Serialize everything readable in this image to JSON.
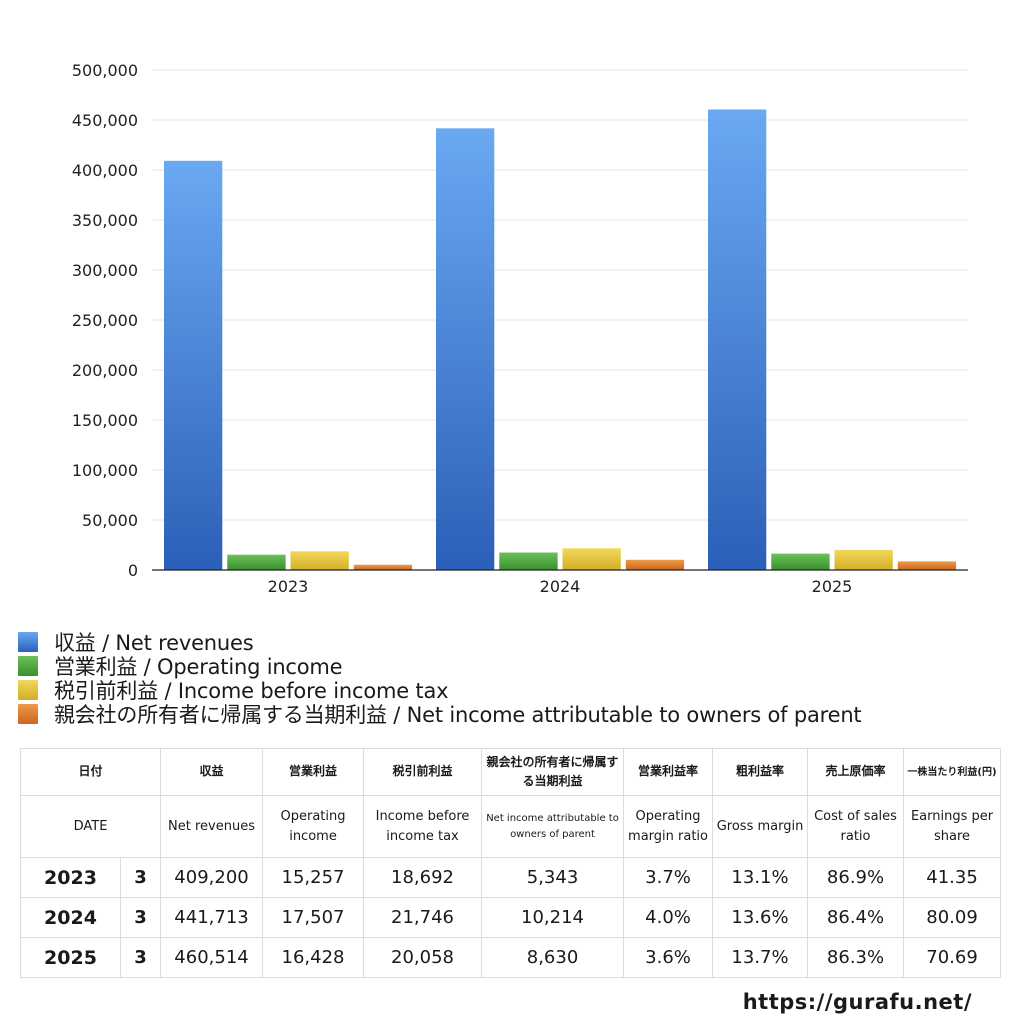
{
  "chart_data": {
    "type": "bar",
    "categories": [
      "2023",
      "2024",
      "2025"
    ],
    "ylim": [
      0,
      500000
    ],
    "yticks": [
      "0",
      "50,000",
      "100,000",
      "150,000",
      "200,000",
      "250,000",
      "300,000",
      "350,000",
      "400,000",
      "450,000",
      "500,000"
    ],
    "grid": true,
    "legend_position": "bottom",
    "series": [
      {
        "name": "収益 / Net revenues",
        "values": [
          409200,
          441713,
          460514
        ],
        "color": "#3f80de",
        "color_light": "#6aa9f2",
        "color_dark": "#2c5fb8"
      },
      {
        "name": "営業利益 / Operating income",
        "values": [
          15257,
          17507,
          16428
        ],
        "color": "#4ea83d",
        "color_light": "#6cc05a",
        "color_dark": "#3a8f2e"
      },
      {
        "name": "税引前利益 / Income before income tax",
        "values": [
          18692,
          21746,
          20058
        ],
        "color": "#e6c63a",
        "color_light": "#f2d85a",
        "color_dark": "#d2ae27"
      },
      {
        "name": "親会社の所有者に帰属する当期利益 / Net income attributable to owners of parent",
        "values": [
          5343,
          10214,
          8630
        ],
        "color": "#e07a2c",
        "color_light": "#ee9a4a",
        "color_dark": "#cc6620"
      }
    ]
  },
  "table": {
    "headers_ja": [
      "日付",
      "収益",
      "営業利益",
      "税引前利益",
      "親会社の所有者に帰属する当期利益",
      "営業利益率",
      "粗利益率",
      "売上原価率",
      "一株当たり利益(円)"
    ],
    "headers_en": [
      "DATE",
      "Net revenues",
      "Operating income",
      "Income before income tax",
      "Net income attributable to owners of parent",
      "Operating margin ratio",
      "Gross margin",
      "Cost of sales ratio",
      "Earnings per share"
    ],
    "rows": [
      {
        "year": "2023",
        "month": "3",
        "cells": [
          "409,200",
          "15,257",
          "18,692",
          "5,343",
          "3.7%",
          "13.1%",
          "86.9%",
          "41.35"
        ]
      },
      {
        "year": "2024",
        "month": "3",
        "cells": [
          "441,713",
          "17,507",
          "21,746",
          "10,214",
          "4.0%",
          "13.6%",
          "86.4%",
          "80.09"
        ]
      },
      {
        "year": "2025",
        "month": "3",
        "cells": [
          "460,514",
          "16,428",
          "20,058",
          "8,630",
          "3.6%",
          "13.7%",
          "86.3%",
          "70.69"
        ]
      }
    ]
  },
  "footer": {
    "url": "https://gurafu.net/"
  }
}
